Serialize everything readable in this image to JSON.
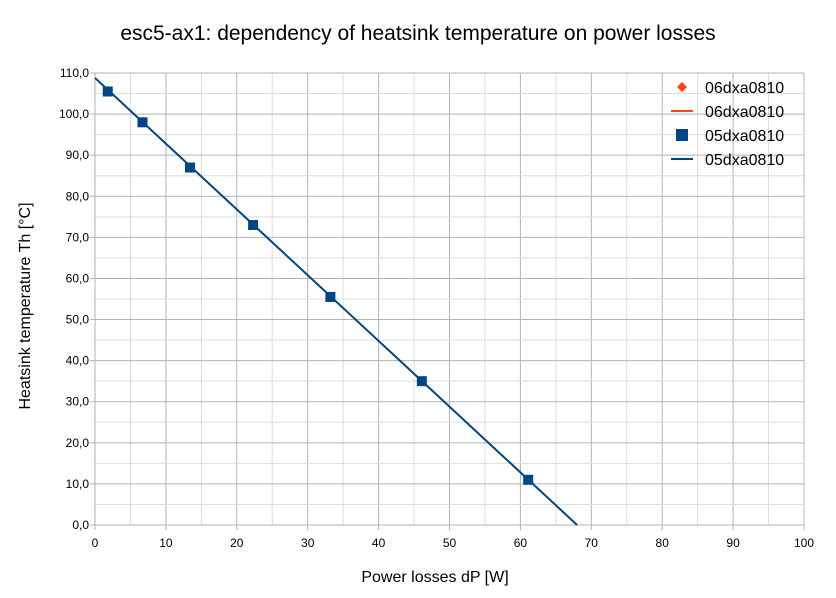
{
  "chart_data": {
    "type": "scatter",
    "title": "esc5-ax1: dependency of heatsink temperature on power losses",
    "xlabel": "Power losses dP [W]",
    "ylabel": "Heatsink temperature Th [°C]",
    "xlim": [
      0,
      100
    ],
    "ylim": [
      0,
      110
    ],
    "xticks": [
      0,
      10,
      20,
      30,
      40,
      50,
      60,
      70,
      80,
      90,
      100
    ],
    "yticks": [
      0,
      10,
      20,
      30,
      40,
      50,
      60,
      70,
      80,
      90,
      100,
      110
    ],
    "ytick_labels": [
      "0,0",
      "10,0",
      "20,0",
      "30,0",
      "40,0",
      "50,0",
      "60,0",
      "70,0",
      "80,0",
      "90,0",
      "100,0",
      "110,0"
    ],
    "grid": true,
    "legend_position": "top-right",
    "series": [
      {
        "name": "06dxa0810",
        "kind": "markers",
        "marker": "diamond",
        "color": "#ff4412",
        "x": [],
        "y": []
      },
      {
        "name": "06dxa0810",
        "kind": "line",
        "color": "#ff4412",
        "x": [],
        "y": []
      },
      {
        "name": "05dxa0810",
        "kind": "markers",
        "marker": "square",
        "color": "#004586",
        "x": [
          1.8,
          6.7,
          13.4,
          22.3,
          33.2,
          46.1,
          61.1
        ],
        "y": [
          105.5,
          98.0,
          87.0,
          73.0,
          55.5,
          35.0,
          11.0
        ]
      },
      {
        "name": "05dxa0810",
        "kind": "line",
        "color": "#004586",
        "x": [
          0,
          68.0
        ],
        "y": [
          108.8,
          0
        ]
      }
    ]
  }
}
